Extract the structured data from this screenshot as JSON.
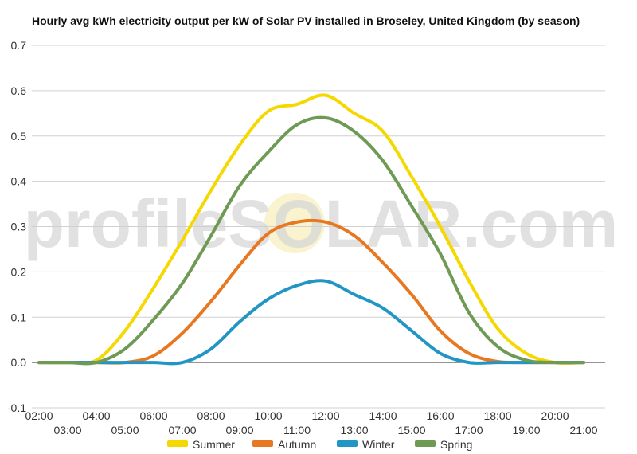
{
  "chart_data": {
    "type": "line",
    "title": "Hourly avg kWh electricity output per kW of Solar PV installed in Broseley, United Kingdom (by season)",
    "xlabel": "",
    "ylabel": "",
    "ylim": [
      -0.1,
      0.7
    ],
    "y_ticks": [
      "-0.1",
      "0.0",
      "0.1",
      "0.2",
      "0.3",
      "0.4",
      "0.5",
      "0.6",
      "0.7"
    ],
    "x_ticks_upper": [
      "02:00",
      "04:00",
      "06:00",
      "08:00",
      "10:00",
      "12:00",
      "14:00",
      "16:00",
      "18:00",
      "20:00"
    ],
    "x_ticks_lower": [
      "03:00",
      "05:00",
      "07:00",
      "09:00",
      "11:00",
      "13:00",
      "15:00",
      "17:00",
      "19:00",
      "21:00"
    ],
    "x_hours": [
      2,
      3,
      4,
      5,
      6,
      7,
      8,
      9,
      10,
      11,
      12,
      13,
      14,
      15,
      16,
      17,
      18,
      19,
      20,
      21
    ],
    "grid": true,
    "legend_position": "bottom",
    "watermark": "profileSOLAR.com",
    "series": [
      {
        "name": "Summer",
        "color": "#f5d800",
        "values": [
          0,
          0,
          0.005,
          0.07,
          0.165,
          0.27,
          0.38,
          0.48,
          0.555,
          0.57,
          0.59,
          0.55,
          0.51,
          0.41,
          0.3,
          0.18,
          0.075,
          0.02,
          0,
          0
        ]
      },
      {
        "name": "Autumn",
        "color": "#e87722",
        "values": [
          0,
          0,
          0,
          0,
          0.015,
          0.065,
          0.135,
          0.215,
          0.285,
          0.31,
          0.31,
          0.28,
          0.22,
          0.15,
          0.07,
          0.02,
          0.002,
          0,
          0,
          0
        ]
      },
      {
        "name": "Winter",
        "color": "#2196c4",
        "values": [
          0,
          0,
          0,
          0,
          0,
          0,
          0.03,
          0.09,
          0.14,
          0.17,
          0.18,
          0.15,
          0.12,
          0.07,
          0.02,
          0,
          0,
          0,
          0,
          0
        ]
      },
      {
        "name": "Spring",
        "color": "#6e9a54",
        "values": [
          0,
          0,
          0,
          0.03,
          0.095,
          0.175,
          0.28,
          0.39,
          0.465,
          0.525,
          0.54,
          0.51,
          0.445,
          0.345,
          0.24,
          0.11,
          0.035,
          0.005,
          0,
          0
        ]
      }
    ]
  }
}
